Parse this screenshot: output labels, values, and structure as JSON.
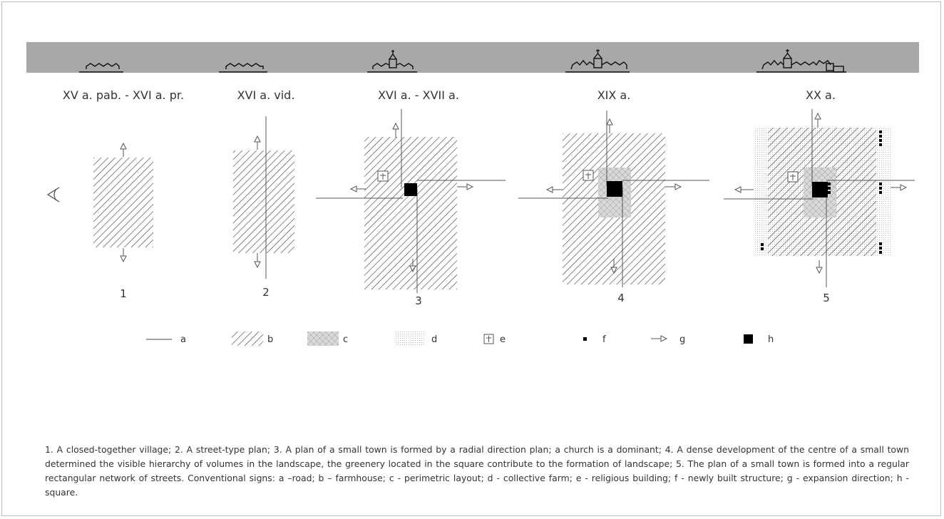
{
  "periods": [
    "XV a. pab. - XVI a. pr.",
    "XVI a. vid.",
    "XVI a. - XVII a.",
    "XIX a.",
    "XX a."
  ],
  "plan_numbers": [
    "1",
    "2",
    "3",
    "4",
    "5"
  ],
  "legend": [
    {
      "key": "a",
      "symbol": "road-line"
    },
    {
      "key": "b",
      "symbol": "hatch-swatch"
    },
    {
      "key": "c",
      "symbol": "crosshatch-swatch"
    },
    {
      "key": "d",
      "symbol": "dotted-swatch"
    },
    {
      "key": "e",
      "symbol": "church-icon"
    },
    {
      "key": "f",
      "symbol": "small-square-icon"
    },
    {
      "key": "g",
      "symbol": "arrow-icon"
    },
    {
      "key": "h",
      "symbol": "square-icon"
    }
  ],
  "caption": "1. A closed-together village; 2. A street-type plan; 3. A plan of a small town is formed by a radial direction plan; a church is a dominant; 4. A dense development of the centre of a small town determined the visible hierarchy of volumes in the landscape, the greenery located in the square contribute  to the formation of landscape; 5. The plan of a small town is formed into a regular rectangular network of streets. Conventional signs: a –road; b – farmhouse; c - perimetric layout; d - collective farm; e - religious building;  f - newly built structure; g - expansion direction; h - square.",
  "colors": {
    "band": "#a8a8a8",
    "ink": "#333333",
    "hatch": "#444444",
    "crosshatch_fill": "#d6d6d6",
    "square": "#000000"
  }
}
